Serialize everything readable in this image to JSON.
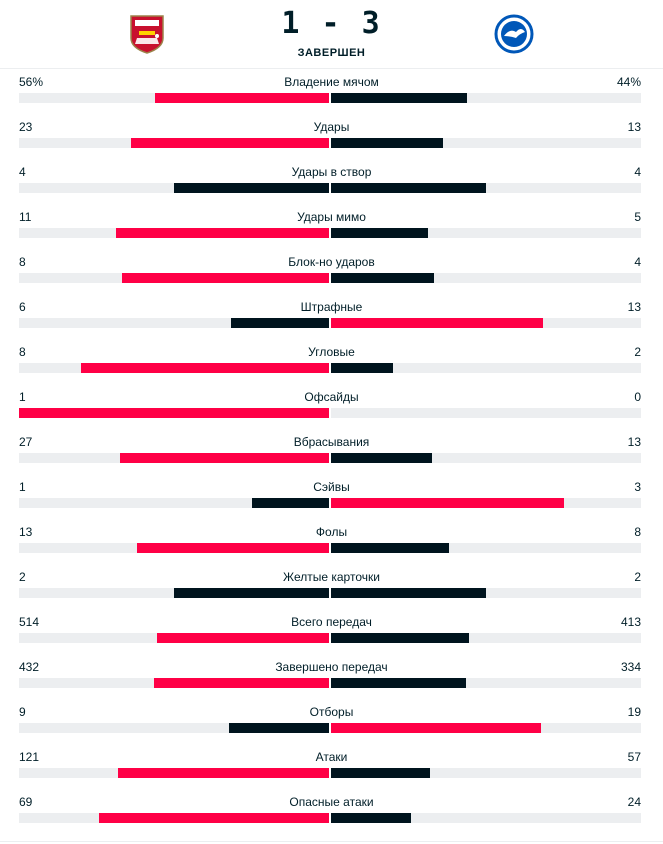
{
  "header": {
    "score": "1 - 3",
    "status": "ЗАВЕРШЕН",
    "home_logo_icon": "arsenal-crest-icon",
    "away_logo_icon": "brighton-crest-icon"
  },
  "colors": {
    "leader": "#ff0046",
    "trailer": "#00141e",
    "track": "#eceef0"
  },
  "stats": [
    {
      "label": "Владение мячом",
      "home": "56%",
      "away": "44%",
      "home_value": 56,
      "away_value": 44
    },
    {
      "label": "Удары",
      "home": "23",
      "away": "13",
      "home_value": 23,
      "away_value": 13
    },
    {
      "label": "Удары в створ",
      "home": "4",
      "away": "4",
      "home_value": 4,
      "away_value": 4
    },
    {
      "label": "Удары мимо",
      "home": "11",
      "away": "5",
      "home_value": 11,
      "away_value": 5
    },
    {
      "label": "Блок-но ударов",
      "home": "8",
      "away": "4",
      "home_value": 8,
      "away_value": 4
    },
    {
      "label": "Штрафные",
      "home": "6",
      "away": "13",
      "home_value": 6,
      "away_value": 13
    },
    {
      "label": "Угловые",
      "home": "8",
      "away": "2",
      "home_value": 8,
      "away_value": 2
    },
    {
      "label": "Офсайды",
      "home": "1",
      "away": "0",
      "home_value": 1,
      "away_value": 0
    },
    {
      "label": "Вбрасывания",
      "home": "27",
      "away": "13",
      "home_value": 27,
      "away_value": 13
    },
    {
      "label": "Сэйвы",
      "home": "1",
      "away": "3",
      "home_value": 1,
      "away_value": 3
    },
    {
      "label": "Фолы",
      "home": "13",
      "away": "8",
      "home_value": 13,
      "away_value": 8
    },
    {
      "label": "Желтые карточки",
      "home": "2",
      "away": "2",
      "home_value": 2,
      "away_value": 2
    },
    {
      "label": "Всего передач",
      "home": "514",
      "away": "413",
      "home_value": 514,
      "away_value": 413
    },
    {
      "label": "Завершено передач",
      "home": "432",
      "away": "334",
      "home_value": 432,
      "away_value": 334
    },
    {
      "label": "Отборы",
      "home": "9",
      "away": "19",
      "home_value": 9,
      "away_value": 19
    },
    {
      "label": "Атаки",
      "home": "121",
      "away": "57",
      "home_value": 121,
      "away_value": 57
    },
    {
      "label": "Опасные атаки",
      "home": "69",
      "away": "24",
      "home_value": 69,
      "away_value": 24
    }
  ]
}
